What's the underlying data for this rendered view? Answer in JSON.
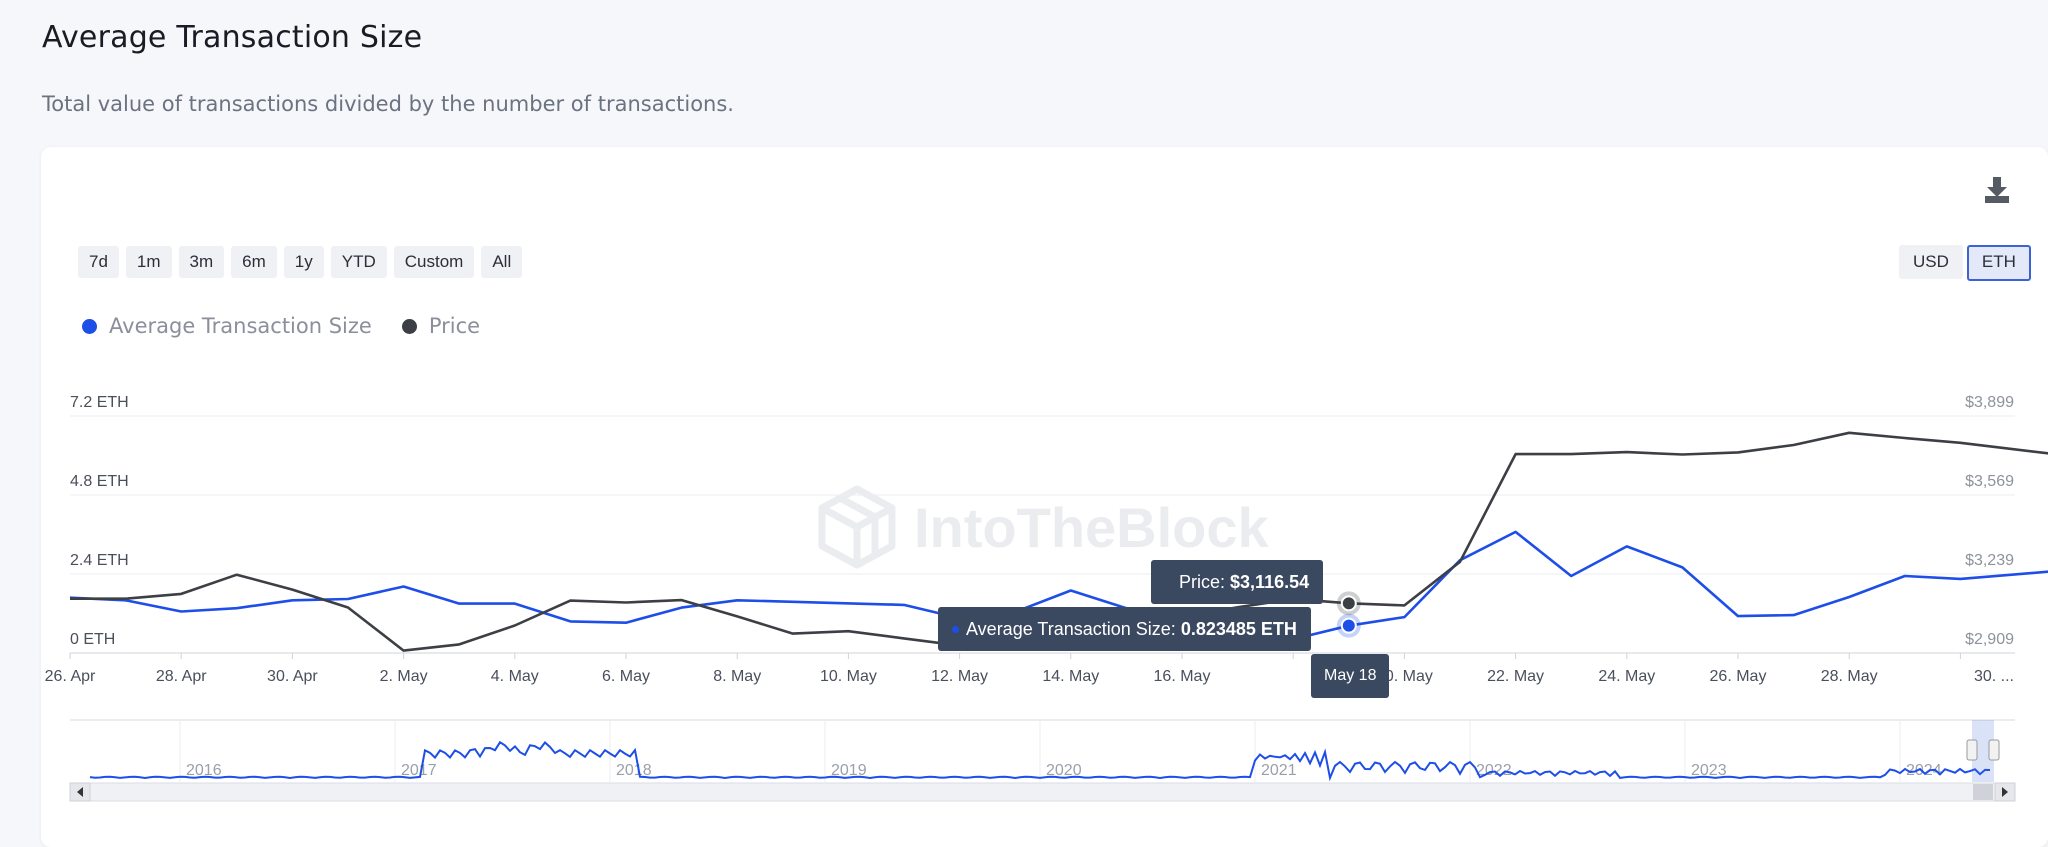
{
  "header": {
    "title": "Average Transaction Size",
    "subtitle": "Total value of transactions divided by the number of transactions."
  },
  "toolbar": {
    "ranges": [
      "7d",
      "1m",
      "3m",
      "6m",
      "1y",
      "YTD",
      "Custom",
      "All"
    ],
    "currencies": [
      "USD",
      "ETH"
    ],
    "selected_currency": "ETH",
    "download_icon": "download-icon"
  },
  "legend": [
    {
      "name": "Average Transaction Size",
      "color": "#1d4ee8"
    },
    {
      "name": "Price",
      "color": "#3c3f44"
    }
  ],
  "watermark": "IntoTheBlock",
  "tooltip": {
    "price_label": "Price:",
    "price_value": "$3,116.54",
    "ats_label": "Average Transaction Size:",
    "ats_value": "0.823485 ETH",
    "date": "May 18"
  },
  "chart_data": {
    "type": "line",
    "x_ticks": [
      "26. Apr",
      "28. Apr",
      "30. Apr",
      "2. May",
      "4. May",
      "6. May",
      "8. May",
      "10. May",
      "12. May",
      "14. May",
      "16. May",
      "May 18",
      "20. May",
      "22. May",
      "24. May",
      "26. May",
      "28. May",
      "30. ..."
    ],
    "y_left_ticks": [
      "0 ETH",
      "2.4 ETH",
      "4.8 ETH",
      "7.2 ETH"
    ],
    "y_right_ticks": [
      "$2,909",
      "$3,239",
      "$3,569",
      "$3,899"
    ],
    "y_left_range": [
      0,
      7.2
    ],
    "y_right_range": [
      2909,
      3899
    ],
    "x_day_range": [
      0,
      35.8
    ],
    "series": [
      {
        "name": "Average Transaction Size",
        "axis": "left",
        "color": "#1d4ee8",
        "points": [
          [
            0,
            1.68
          ],
          [
            1,
            1.6
          ],
          [
            2,
            1.26
          ],
          [
            3,
            1.36
          ],
          [
            4,
            1.6
          ],
          [
            5,
            1.64
          ],
          [
            6,
            2.02
          ],
          [
            7,
            1.5
          ],
          [
            8,
            1.5
          ],
          [
            9,
            0.96
          ],
          [
            10,
            0.92
          ],
          [
            11,
            1.38
          ],
          [
            12,
            1.6
          ],
          [
            15,
            1.46
          ],
          [
            16,
            1.06
          ],
          [
            17,
            1.25
          ],
          [
            18,
            1.9
          ],
          [
            19,
            1.36
          ],
          [
            20,
            1.24
          ],
          [
            21,
            1.2
          ],
          [
            22,
            0.42
          ],
          [
            23,
            0.83
          ],
          [
            24,
            1.09
          ],
          [
            25,
            2.82
          ],
          [
            26,
            3.68
          ],
          [
            27,
            2.34
          ],
          [
            28,
            3.24
          ],
          [
            29,
            2.6
          ],
          [
            30,
            1.12
          ],
          [
            31,
            1.15
          ],
          [
            32,
            1.7
          ],
          [
            33,
            2.34
          ],
          [
            34,
            2.25
          ],
          [
            35.8,
            2.5
          ]
        ]
      },
      {
        "name": "Price",
        "axis": "right",
        "color": "#3c3f44",
        "points": [
          [
            0,
            3136
          ],
          [
            1,
            3136
          ],
          [
            2,
            3156
          ],
          [
            3,
            3236
          ],
          [
            4,
            3174
          ],
          [
            5,
            3099
          ],
          [
            6,
            2919
          ],
          [
            7,
            2945
          ],
          [
            8,
            3024
          ],
          [
            9,
            3128
          ],
          [
            10,
            3120
          ],
          [
            11,
            3130
          ],
          [
            12,
            3062
          ],
          [
            13,
            2990
          ],
          [
            14,
            3000
          ],
          [
            15,
            2970
          ],
          [
            16,
            2940
          ],
          [
            17,
            2940
          ],
          [
            18,
            2970
          ],
          [
            19,
            3030
          ],
          [
            20,
            3060
          ],
          [
            21,
            3100
          ],
          [
            22,
            3135
          ],
          [
            23,
            3116.54
          ],
          [
            24,
            3108
          ],
          [
            25,
            3290
          ],
          [
            26,
            3740
          ],
          [
            27,
            3740
          ],
          [
            28,
            3748
          ],
          [
            29,
            3738
          ],
          [
            30,
            3747
          ],
          [
            31,
            3778
          ],
          [
            32,
            3829
          ],
          [
            33,
            3807
          ],
          [
            34,
            3787
          ],
          [
            35.8,
            3737
          ]
        ]
      }
    ],
    "navigator": {
      "years": [
        "2016",
        "2017",
        "2018",
        "2019",
        "2020",
        "2021",
        "2022",
        "2023",
        "2024"
      ]
    }
  }
}
